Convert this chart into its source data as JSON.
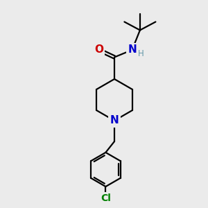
{
  "bg_color": "#ebebeb",
  "bond_color": "#000000",
  "N_color": "#0000cc",
  "O_color": "#cc0000",
  "Cl_color": "#008000",
  "H_color": "#6699aa",
  "line_width": 1.6,
  "figsize": [
    3.0,
    3.0
  ],
  "dpi": 100,
  "xlim": [
    0,
    10
  ],
  "ylim": [
    0,
    10
  ]
}
